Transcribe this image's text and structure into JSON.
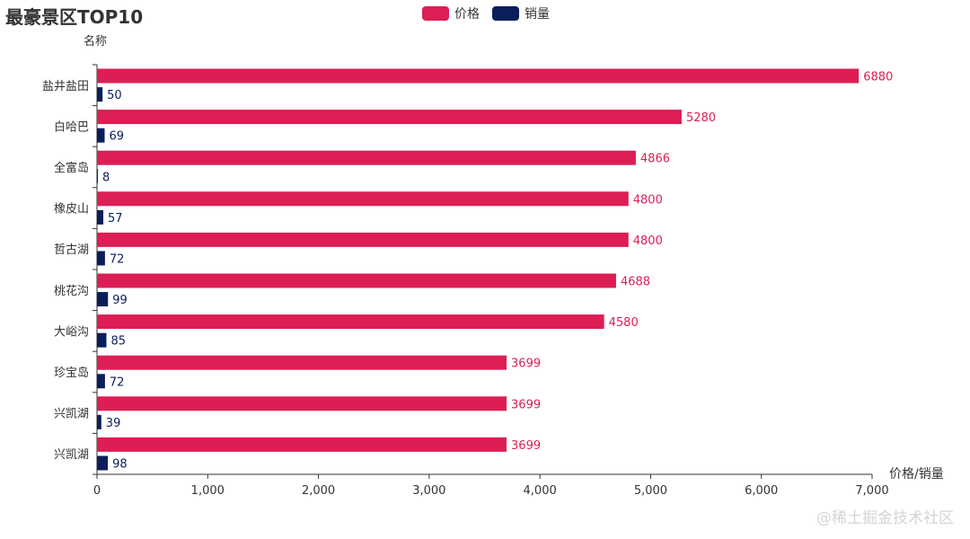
{
  "chart_data": {
    "type": "bar",
    "orientation": "horizontal",
    "title": "最豪景区TOP10",
    "ylabel": "名称",
    "xlabel": "价格/销量",
    "categories": [
      "盐井盐田",
      "白哈巴",
      "全富岛",
      "橡皮山",
      "哲古湖",
      "桃花沟",
      "大峪沟",
      "珍宝岛",
      "兴凯湖",
      "兴凯湖"
    ],
    "series": [
      {
        "name": "价格",
        "color": "#dc1e55",
        "values": [
          6880,
          5280,
          4866,
          4800,
          4800,
          4688,
          4580,
          3699,
          3699,
          3699
        ]
      },
      {
        "name": "销量",
        "color": "#0b1e5b",
        "values": [
          50,
          69,
          8,
          57,
          72,
          99,
          85,
          72,
          39,
          98
        ]
      }
    ],
    "xlim": [
      0,
      7000
    ],
    "xticks": [
      "0",
      "1,000",
      "2,000",
      "3,000",
      "4,000",
      "5,000",
      "6,000",
      "7,000"
    ],
    "grid": false,
    "legend_position": "top-center"
  },
  "watermark": "@稀土掘金技术社区"
}
